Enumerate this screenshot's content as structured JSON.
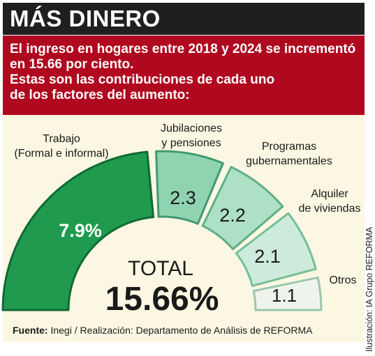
{
  "title": "MÁS DINERO",
  "intro": [
    "El ingreso en hogares entre 2018 y 2024 se incrementó",
    "en 15.66 por ciento.",
    "Estas son las contribuciones de cada uno",
    "de los factores del aumento:"
  ],
  "credit": "Ilustración: IA Grupo REFORMA",
  "source": {
    "label": "Fuente:",
    "text": "Inegi / Realización: Departamento de Análisis de REFORMA"
  },
  "colors": {
    "title_bg": "#1f1f1f",
    "intro_bg": "#b0081f",
    "panel_bg": "#fbf7e2",
    "segment_1": "#1f9a4f",
    "segment_2": "#8fd3b1",
    "segment_3": "#aee0c5",
    "segment_4": "#cdebdc",
    "segment_5": "#eef4ec"
  },
  "chart_data": {
    "type": "pie",
    "title": "",
    "total_label": "TOTAL",
    "total_value": "15.66%",
    "slices": [
      {
        "label_lines": [
          "Trabajo",
          "(Formal e informal)"
        ],
        "value": 7.9,
        "value_label": "7.9%"
      },
      {
        "label_lines": [
          "Jubilaciones",
          "y pensiones"
        ],
        "value": 2.3,
        "value_label": "2.3"
      },
      {
        "label_lines": [
          "Programas",
          "gubernamentales"
        ],
        "value": 2.2,
        "value_label": "2.2"
      },
      {
        "label_lines": [
          "Alquiler",
          "de viviendas"
        ],
        "value": 2.1,
        "value_label": "2.1"
      },
      {
        "label_lines": [
          "Otros"
        ],
        "value": 1.1,
        "value_label": "1.1"
      }
    ]
  }
}
